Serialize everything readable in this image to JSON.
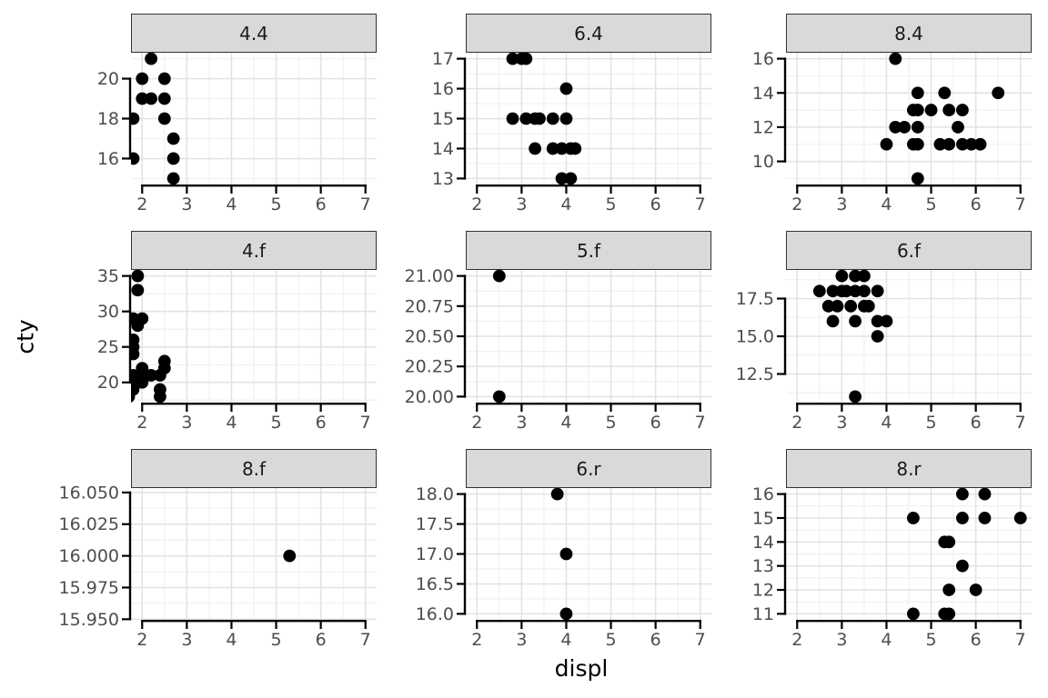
{
  "chart_data": {
    "type": "scatter",
    "title": "",
    "xlabel": "displ",
    "ylabel": "cty",
    "legend": "none",
    "grid": "on",
    "x_domain": [
      1.75,
      7.25
    ],
    "x_ticks": [
      {
        "v": 2,
        "l": "2"
      },
      {
        "v": 3,
        "l": "3"
      },
      {
        "v": 4,
        "l": "4"
      },
      {
        "v": 5,
        "l": "5"
      },
      {
        "v": 6,
        "l": "6"
      },
      {
        "v": 7,
        "l": "7"
      }
    ],
    "x_minor": [
      2.5,
      3.5,
      4.5,
      5.5,
      6.5
    ],
    "facets": [
      {
        "label": "4.4",
        "y_domain": [
          14.7,
          21.3
        ],
        "y_ticks": [
          {
            "v": 16,
            "l": "16"
          },
          {
            "v": 18,
            "l": "18"
          },
          {
            "v": 20,
            "l": "20"
          }
        ],
        "y_minor": [
          15,
          17,
          19,
          21
        ],
        "points": [
          [
            2.2,
            21
          ],
          [
            2.0,
            20
          ],
          [
            2.5,
            20
          ],
          [
            2.0,
            19
          ],
          [
            2.2,
            19
          ],
          [
            2.5,
            19
          ],
          [
            1.8,
            18
          ],
          [
            2.5,
            18
          ],
          [
            2.7,
            17
          ],
          [
            1.8,
            16
          ],
          [
            2.7,
            16
          ],
          [
            2.7,
            15
          ]
        ]
      },
      {
        "label": "6.4",
        "y_domain": [
          12.8,
          17.2
        ],
        "y_ticks": [
          {
            "v": 13,
            "l": "13"
          },
          {
            "v": 14,
            "l": "14"
          },
          {
            "v": 15,
            "l": "15"
          },
          {
            "v": 16,
            "l": "16"
          },
          {
            "v": 17,
            "l": "17"
          }
        ],
        "y_minor": [
          13.5,
          14.5,
          15.5,
          16.5
        ],
        "points": [
          [
            2.8,
            17
          ],
          [
            3.0,
            17
          ],
          [
            3.1,
            17
          ],
          [
            4.0,
            16
          ],
          [
            2.8,
            15
          ],
          [
            3.1,
            15
          ],
          [
            3.3,
            15
          ],
          [
            3.4,
            15
          ],
          [
            3.7,
            15
          ],
          [
            4.0,
            15
          ],
          [
            3.3,
            14
          ],
          [
            3.7,
            14
          ],
          [
            3.9,
            14
          ],
          [
            4.1,
            14
          ],
          [
            4.2,
            14
          ],
          [
            3.9,
            13
          ],
          [
            4.1,
            13
          ]
        ]
      },
      {
        "label": "8.4",
        "y_domain": [
          8.65,
          16.35
        ],
        "y_ticks": [
          {
            "v": 10,
            "l": "10"
          },
          {
            "v": 12,
            "l": "12"
          },
          {
            "v": 14,
            "l": "14"
          },
          {
            "v": 16,
            "l": "16"
          }
        ],
        "y_minor": [
          9,
          11,
          13,
          15
        ],
        "points": [
          [
            4.2,
            16
          ],
          [
            4.7,
            14
          ],
          [
            5.3,
            14
          ],
          [
            6.5,
            14
          ],
          [
            4.6,
            13
          ],
          [
            4.7,
            13
          ],
          [
            5.0,
            13
          ],
          [
            5.4,
            13
          ],
          [
            5.7,
            13
          ],
          [
            4.2,
            12
          ],
          [
            4.4,
            12
          ],
          [
            4.7,
            12
          ],
          [
            5.6,
            12
          ],
          [
            4.0,
            11
          ],
          [
            4.6,
            11
          ],
          [
            4.7,
            11
          ],
          [
            5.2,
            11
          ],
          [
            5.4,
            11
          ],
          [
            5.7,
            11
          ],
          [
            5.9,
            11
          ],
          [
            6.1,
            11
          ],
          [
            4.7,
            9
          ]
        ]
      },
      {
        "label": "4.f",
        "y_domain": [
          17.15,
          35.85
        ],
        "y_ticks": [
          {
            "v": 20,
            "l": "20"
          },
          {
            "v": 25,
            "l": "25"
          },
          {
            "v": 30,
            "l": "30"
          },
          {
            "v": 35,
            "l": "35"
          }
        ],
        "y_minor": [
          17.5,
          22.5,
          27.5,
          32.5
        ],
        "points": [
          [
            1.9,
            35
          ],
          [
            1.9,
            33
          ],
          [
            1.8,
            29
          ],
          [
            2.0,
            29
          ],
          [
            1.9,
            28
          ],
          [
            1.8,
            26
          ],
          [
            1.8,
            25
          ],
          [
            1.8,
            24
          ],
          [
            2.5,
            23
          ],
          [
            2.5,
            22
          ],
          [
            2.0,
            22
          ],
          [
            1.8,
            21
          ],
          [
            2.0,
            21
          ],
          [
            2.2,
            21
          ],
          [
            2.4,
            21
          ],
          [
            1.8,
            20
          ],
          [
            2.0,
            20
          ],
          [
            1.8,
            19
          ],
          [
            2.4,
            19
          ],
          [
            1.6,
            18
          ],
          [
            1.7,
            18
          ],
          [
            2.4,
            18
          ]
        ]
      },
      {
        "label": "5.f",
        "y_domain": [
          19.95,
          21.05
        ],
        "y_ticks": [
          {
            "v": 20,
            "l": "20.00"
          },
          {
            "v": 20.25,
            "l": "20.25"
          },
          {
            "v": 20.5,
            "l": "20.50"
          },
          {
            "v": 20.75,
            "l": "20.75"
          },
          {
            "v": 21,
            "l": "21.00"
          }
        ],
        "y_minor": [
          20.125,
          20.375,
          20.625,
          20.875
        ],
        "points": [
          [
            2.5,
            21
          ],
          [
            2.5,
            20
          ]
        ]
      },
      {
        "label": "6.f",
        "y_domain": [
          10.6,
          19.4
        ],
        "y_ticks": [
          {
            "v": 12.5,
            "l": "12.5"
          },
          {
            "v": 15,
            "l": "15.0"
          },
          {
            "v": 17.5,
            "l": "17.5"
          }
        ],
        "y_minor": [
          11.25,
          13.75,
          16.25,
          18.75
        ],
        "points": [
          [
            3.0,
            19
          ],
          [
            3.3,
            19
          ],
          [
            3.5,
            19
          ],
          [
            2.5,
            18
          ],
          [
            2.8,
            18
          ],
          [
            3.0,
            18
          ],
          [
            3.1,
            18
          ],
          [
            3.3,
            18
          ],
          [
            3.5,
            18
          ],
          [
            3.8,
            18
          ],
          [
            2.7,
            17
          ],
          [
            2.9,
            17
          ],
          [
            3.2,
            17
          ],
          [
            3.5,
            17
          ],
          [
            3.6,
            17
          ],
          [
            2.8,
            16
          ],
          [
            3.3,
            16
          ],
          [
            3.8,
            16
          ],
          [
            4.0,
            16
          ],
          [
            3.8,
            15
          ],
          [
            3.3,
            11
          ]
        ]
      },
      {
        "label": "8.f",
        "y_domain": [
          15.9495,
          16.0535
        ],
        "y_ticks": [
          {
            "v": 15.95,
            "l": "15.950"
          },
          {
            "v": 15.975,
            "l": "15.975"
          },
          {
            "v": 16,
            "l": "16.000"
          },
          {
            "v": 16.025,
            "l": "16.025"
          },
          {
            "v": 16.05,
            "l": "16.050"
          }
        ],
        "y_minor": [
          15.9625,
          15.9875,
          16.0125,
          16.0375
        ],
        "points": [
          [
            5.3,
            16
          ]
        ]
      },
      {
        "label": "6.r",
        "y_domain": [
          15.9,
          18.1
        ],
        "y_ticks": [
          {
            "v": 16,
            "l": "16.0"
          },
          {
            "v": 16.5,
            "l": "16.5"
          },
          {
            "v": 17,
            "l": "17.0"
          },
          {
            "v": 17.5,
            "l": "17.5"
          },
          {
            "v": 18,
            "l": "18.0"
          }
        ],
        "y_minor": [
          16.25,
          16.75,
          17.25,
          17.75
        ],
        "points": [
          [
            3.8,
            18
          ],
          [
            4.0,
            17
          ],
          [
            4.0,
            16
          ]
        ]
      },
      {
        "label": "8.r",
        "y_domain": [
          10.75,
          16.25
        ],
        "y_ticks": [
          {
            "v": 11,
            "l": "11"
          },
          {
            "v": 12,
            "l": "12"
          },
          {
            "v": 13,
            "l": "13"
          },
          {
            "v": 14,
            "l": "14"
          },
          {
            "v": 15,
            "l": "15"
          },
          {
            "v": 16,
            "l": "16"
          }
        ],
        "y_minor": [
          11.5,
          12.5,
          13.5,
          14.5,
          15.5
        ],
        "points": [
          [
            5.7,
            16
          ],
          [
            6.2,
            16
          ],
          [
            4.6,
            15
          ],
          [
            5.7,
            15
          ],
          [
            6.2,
            15
          ],
          [
            7.0,
            15
          ],
          [
            5.3,
            14
          ],
          [
            5.4,
            14
          ],
          [
            5.7,
            13
          ],
          [
            5.4,
            12
          ],
          [
            6.0,
            12
          ],
          [
            4.6,
            11
          ],
          [
            5.3,
            11
          ],
          [
            5.4,
            11
          ]
        ]
      }
    ],
    "style": {
      "strip_fill": "#d9d9d9",
      "strip_border": "#333333",
      "strip_text_color": "#1a1a1a",
      "panel_bg": "#ffffff",
      "grid_major": "#e2e2e2",
      "grid_minor": "#eeeeee",
      "axis_color": "#000000",
      "tick_label_color": "#4d4d4d",
      "axis_title_color": "#000000",
      "point_color": "#000000"
    }
  }
}
